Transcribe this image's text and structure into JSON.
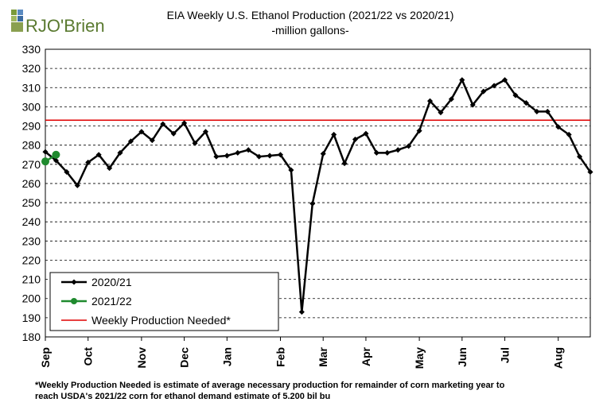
{
  "logo": {
    "brand": "RJO'Brien"
  },
  "chart_data": {
    "type": "line",
    "title": "EIA Weekly U.S. Ethanol Production (2021/22 vs 2020/21)",
    "subtitle": "-million  gallons-",
    "categories": [
      "Sep",
      null,
      null,
      null,
      "Oct",
      null,
      null,
      null,
      null,
      "Nov",
      null,
      null,
      null,
      "Dec",
      null,
      null,
      null,
      "Jan",
      null,
      null,
      null,
      null,
      "Feb",
      null,
      null,
      null,
      "Mar",
      null,
      null,
      null,
      "Apr",
      null,
      null,
      null,
      null,
      "May",
      null,
      null,
      null,
      "Jun",
      null,
      null,
      null,
      "Jul",
      null,
      null,
      null,
      null,
      "Aug",
      null,
      null,
      null
    ],
    "series": [
      {
        "name": "2020/21",
        "color": "#000000",
        "values": [
          276.5,
          272,
          266,
          259,
          271,
          275,
          268,
          276,
          282,
          287,
          282.5,
          291,
          286,
          291.5,
          281,
          287,
          274,
          274.5,
          276,
          277.5,
          274,
          274.5,
          275,
          267,
          193,
          249.5,
          275.5,
          285.5,
          270.5,
          283,
          286,
          276,
          276,
          277.5,
          279.5,
          287.5,
          303,
          297,
          304,
          314,
          301,
          308,
          311,
          314,
          306,
          302,
          297.5,
          297.5,
          289.5,
          285.5,
          274,
          266
        ]
      },
      {
        "name": "2021/22",
        "color": "#1f8a2e",
        "values": [
          271.5,
          275,
          null,
          null,
          null,
          null,
          null,
          null,
          null,
          null,
          null,
          null,
          null,
          null,
          null,
          null,
          null,
          null,
          null,
          null,
          null,
          null,
          null,
          null,
          null,
          null,
          null,
          null,
          null,
          null,
          null,
          null,
          null,
          null,
          null,
          null,
          null,
          null,
          null,
          null,
          null,
          null,
          null,
          null,
          null,
          null,
          null,
          null,
          null,
          null,
          null,
          null
        ]
      }
    ],
    "reference_line": {
      "name": "Weekly Production Needed*",
      "value": 293,
      "color": "#e00000"
    },
    "ylim": [
      180,
      330
    ],
    "yticks": [
      180,
      190,
      200,
      210,
      220,
      230,
      240,
      250,
      260,
      270,
      280,
      290,
      300,
      310,
      320,
      330
    ],
    "grid": true,
    "legend": "lower-left",
    "footnote": [
      "*Weekly Production Needed is estimate of average necessary production for remainder of corn marketing year to",
      "reach USDA's 2021/22 corn for ethanol demand estimate of 5.200 bil bu"
    ]
  }
}
